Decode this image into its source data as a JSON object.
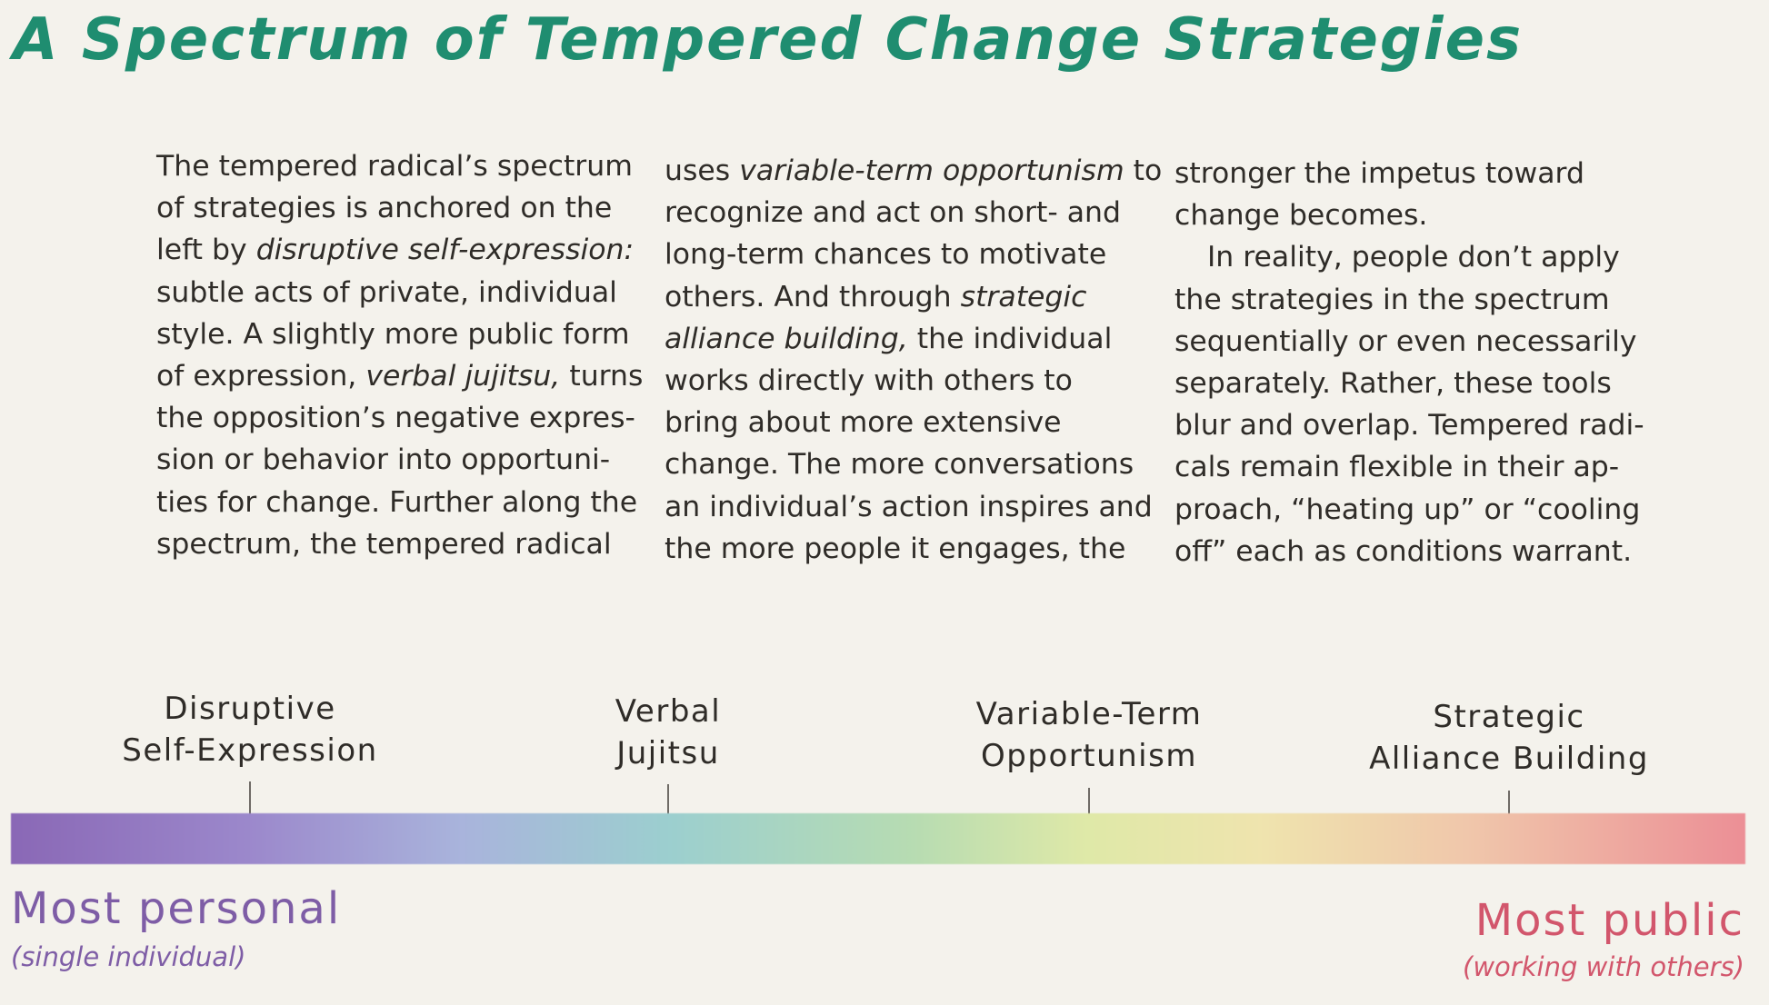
{
  "title": "A Spectrum of Tempered Change Strategies",
  "columns": [
    {
      "lines": [
        "The tempered radical’s spectrum",
        "of strategies is anchored on the",
        [
          "left by ",
          {
            "i": "disruptive self-expression:"
          }
        ],
        "subtle acts of private, individual",
        "style. A slightly more public form",
        [
          "of expression, ",
          {
            "i": "verbal jujitsu,"
          },
          " turns"
        ],
        "the opposition’s negative expres-",
        "sion or behavior into opportuni-",
        "ties for change. Further along the",
        "spectrum, the tempered radical"
      ]
    },
    {
      "lines": [
        [
          "uses ",
          {
            "i": "variable-term opportunism"
          },
          " to"
        ],
        "recognize and act on short- and",
        "long-term chances to motivate",
        [
          "others. And through ",
          {
            "i": "strategic"
          }
        ],
        [
          {
            "i": "alliance building,"
          },
          " the individual"
        ],
        "works directly with others to",
        "bring about more extensive",
        "change. The more conversations",
        "an individual’s action inspires and",
        "the more people it engages, the"
      ]
    },
    {
      "paragraphs": [
        {
          "indent": false,
          "lines": [
            "stronger the impetus toward",
            "change becomes."
          ]
        },
        {
          "indent": true,
          "lines": [
            "In reality, people don’t apply",
            "the strategies in the spectrum",
            "sequentially or even necessarily",
            "separately. Rather, these tools",
            "blur and overlap. Tempered radi-",
            "cals remain flexible in their ap-",
            "proach, “heating up” or “cooling",
            "off” each as conditions warrant."
          ]
        }
      ]
    }
  ],
  "spectrum": {
    "strategies": [
      {
        "line1": "Disruptive",
        "line2": "Self-Expression"
      },
      {
        "line1": "Verbal",
        "line2": "Jujitsu"
      },
      {
        "line1": "Variable-Term",
        "line2": "Opportunism"
      },
      {
        "line1": "Strategic",
        "line2": "Alliance Building"
      }
    ],
    "left_end": {
      "label": "Most personal",
      "sublabel": "(single individual)",
      "color": "#7e5da6"
    },
    "right_end": {
      "label": "Most public",
      "sublabel": "(working with others)",
      "color": "#d2566c"
    },
    "gradient_colors": [
      "#8a68b6",
      "#9c89cc",
      "#a9b4dc",
      "#9ccfcf",
      "#b7dcb2",
      "#dfe9a8",
      "#efe4ae",
      "#f0c7ab",
      "#ec8f96"
    ]
  }
}
